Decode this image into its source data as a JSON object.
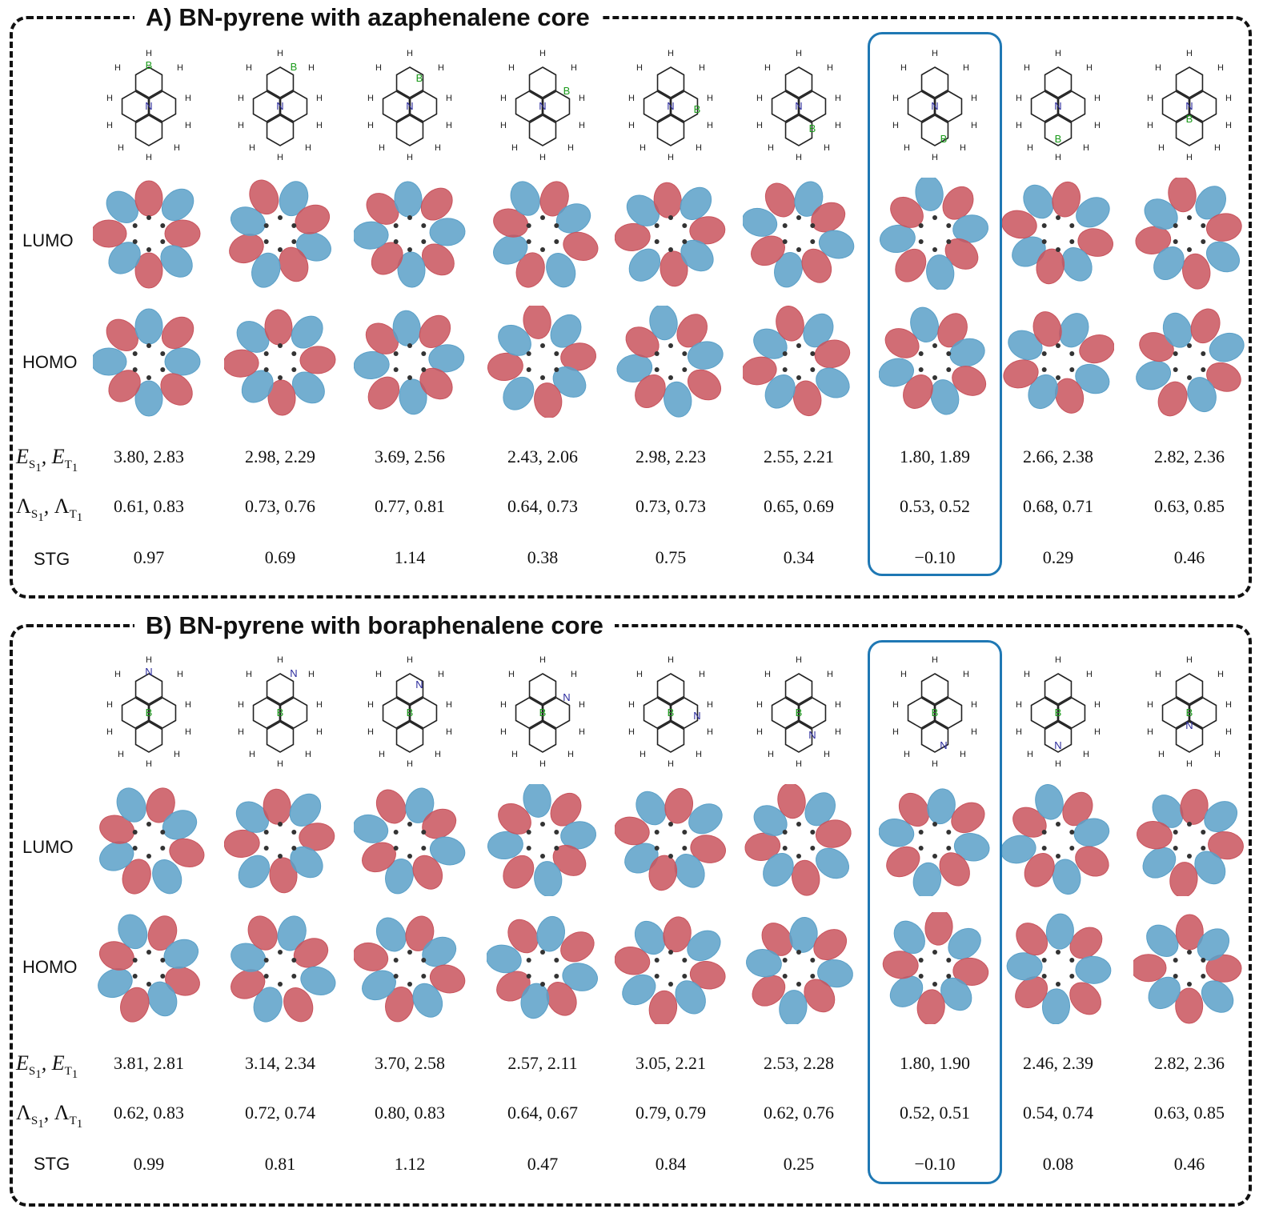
{
  "panels": [
    {
      "title": "A) BN-pyrene with azaphenalene core",
      "core_atom": "N",
      "other_atom": "B",
      "rows": {
        "lumo": "LUMO",
        "homo": "HOMO",
        "stg": "STG"
      },
      "energies": [
        "3.80, 2.83",
        "2.98, 2.29",
        "3.69, 2.56",
        "2.43, 2.06",
        "2.98, 2.23",
        "2.55, 2.21",
        "1.80, 1.89",
        "2.66, 2.38",
        "2.82, 2.36"
      ],
      "lambdas": [
        "0.61, 0.83",
        "0.73, 0.76",
        "0.77, 0.81",
        "0.64, 0.73",
        "0.73, 0.73",
        "0.65, 0.69",
        "0.53, 0.52",
        "0.68, 0.71",
        "0.63, 0.85"
      ],
      "stg": [
        "0.97",
        "0.69",
        "1.14",
        "0.38",
        "0.75",
        "0.34",
        "−0.10",
        "0.29",
        "0.46"
      ],
      "highlight_index": 6
    },
    {
      "title": "B) BN-pyrene with boraphenalene core",
      "core_atom": "B",
      "other_atom": "N",
      "rows": {
        "lumo": "LUMO",
        "homo": "HOMO",
        "stg": "STG"
      },
      "energies": [
        "3.81, 2.81",
        "3.14, 2.34",
        "3.70, 2.58",
        "2.57, 2.11",
        "3.05, 2.21",
        "2.53, 2.28",
        "1.80, 1.90",
        "2.46, 2.39",
        "2.82, 2.36"
      ],
      "lambdas": [
        "0.62, 0.83",
        "0.72, 0.74",
        "0.80, 0.83",
        "0.64, 0.67",
        "0.79, 0.79",
        "0.62, 0.76",
        "0.52, 0.51",
        "0.54, 0.74",
        "0.63, 0.85"
      ],
      "stg": [
        "0.99",
        "0.81",
        "1.12",
        "0.47",
        "0.84",
        "0.25",
        "−0.10",
        "0.08",
        "0.46"
      ],
      "highlight_index": 6
    }
  ],
  "labels": {
    "hydrogen": "H"
  },
  "colors": {
    "boron": "#1a9a1a",
    "nitrogen": "#2b2b9e",
    "orbital_pos": "#c9545d",
    "orbital_neg": "#5aa0c8",
    "highlight": "#1f78b4"
  }
}
